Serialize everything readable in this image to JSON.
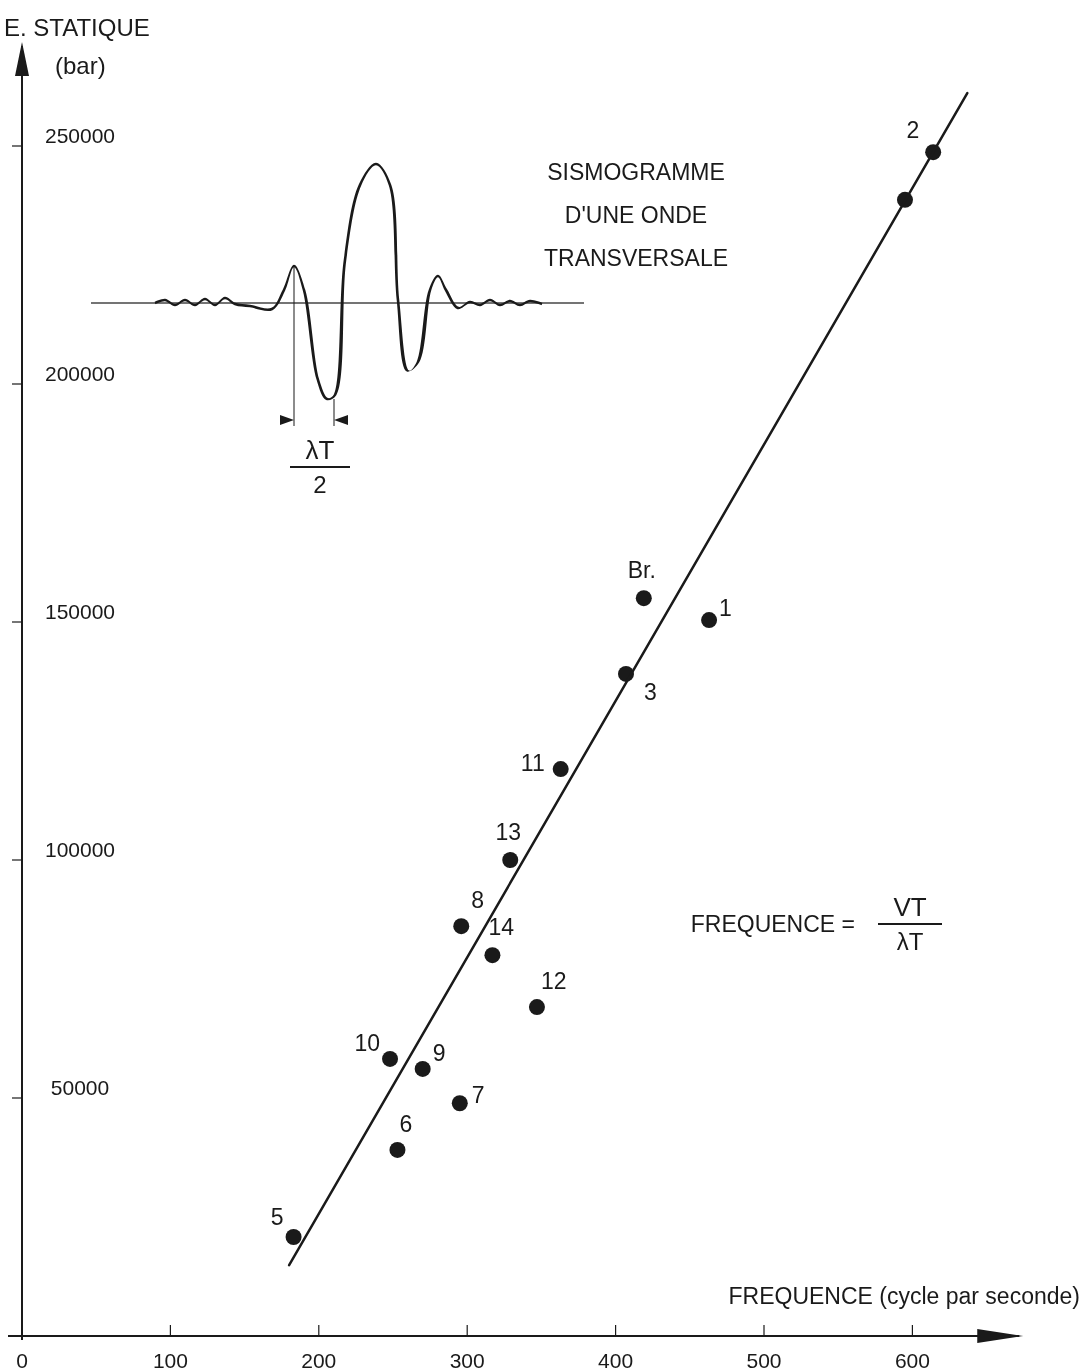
{
  "chart_data": {
    "type": "scatter",
    "xlabel": "FREQUENCE (cycle par seconde)",
    "ylabel": "E. STATIQUE (bar)",
    "xlim": [
      0,
      672
    ],
    "ylim": [
      0,
      271000
    ],
    "xticks": [
      0,
      100,
      200,
      300,
      400,
      500,
      600
    ],
    "yticks": [
      50000,
      100000,
      150000,
      200000,
      250000
    ],
    "grid": false,
    "series": [
      {
        "marker": "circle",
        "color": "#1a1a1a",
        "x": [
          614,
          595,
          419,
          463,
          407,
          363,
          329,
          296,
          317,
          347,
          248,
          270,
          295,
          253,
          183
        ],
        "values": [
          248700,
          238700,
          155000,
          150400,
          139100,
          119100,
          100000,
          86100,
          80000,
          69100,
          58200,
          56100,
          48900,
          39100,
          20800
        ]
      },
      {
        "type": "line",
        "marker": "none",
        "color": "#1a1a1a",
        "line_style": "solid",
        "x": [
          180,
          637
        ],
        "values": [
          14900,
          261100
        ]
      }
    ],
    "annotations": [
      "SISMOGRAMME D'UNE ONDE TRANSVERSALE",
      "λT",
      "2",
      "FREQUENCE =",
      "VT",
      "λT",
      {
        "text": "2",
        "x": 614,
        "y": 248700
      },
      {
        "text": "Br.",
        "x": 419,
        "y": 155000
      },
      {
        "text": "1",
        "x": 463,
        "y": 150400
      },
      {
        "text": "3",
        "x": 407,
        "y": 139100
      },
      {
        "text": "11",
        "x": 363,
        "y": 119100
      },
      {
        "text": "13",
        "x": 329,
        "y": 100000
      },
      {
        "text": "8",
        "x": 296,
        "y": 86100
      },
      {
        "text": "14",
        "x": 317,
        "y": 80000
      },
      {
        "text": "12",
        "x": 347,
        "y": 69100
      },
      {
        "text": "10",
        "x": 248,
        "y": 58200
      },
      {
        "text": "9",
        "x": 270,
        "y": 56100
      },
      {
        "text": "7",
        "x": 295,
        "y": 48900
      },
      {
        "text": "6",
        "x": 253,
        "y": 39100
      },
      {
        "text": "5",
        "x": 183,
        "y": 20800
      }
    ]
  }
}
